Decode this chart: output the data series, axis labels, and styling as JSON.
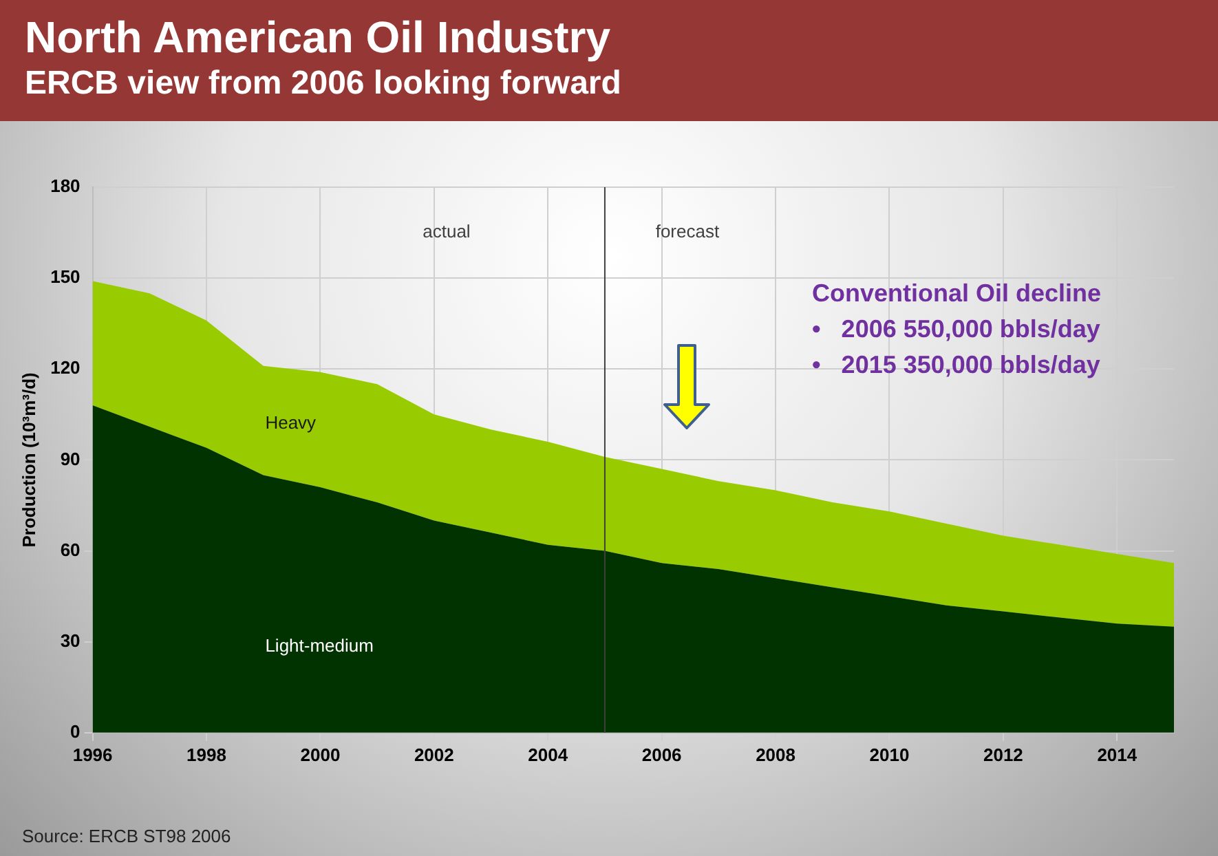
{
  "chart_data": {
    "type": "area",
    "stacked": true,
    "title": "North American Oil Industry",
    "subtitle": "ERCB view from 2006 looking forward",
    "ylabel": "Production (10³m³/d)",
    "x": [
      1996,
      1997,
      1998,
      1999,
      2000,
      2001,
      2002,
      2003,
      2004,
      2005,
      2006,
      2007,
      2008,
      2009,
      2010,
      2011,
      2012,
      2013,
      2014,
      2015
    ],
    "series": [
      {
        "name": "Light-medium",
        "color": "#003300",
        "values": [
          108,
          101,
          94,
          85,
          81,
          76,
          70,
          66,
          62,
          60,
          56,
          54,
          51,
          48,
          45,
          42,
          40,
          38,
          36,
          35
        ]
      },
      {
        "name": "Heavy",
        "color": "#99cc00",
        "values": [
          41,
          44,
          42,
          36,
          38,
          39,
          35,
          34,
          34,
          31,
          31,
          29,
          29,
          28,
          28,
          27,
          25,
          24,
          23,
          21
        ]
      }
    ],
    "xlim": [
      1996,
      2015
    ],
    "xticks": [
      1996,
      1998,
      2000,
      2002,
      2004,
      2006,
      2008,
      2010,
      2012,
      2014
    ],
    "ylim": [
      0,
      180
    ],
    "yticks": [
      0,
      30,
      60,
      90,
      120,
      150,
      180
    ],
    "grid": true,
    "legend": false,
    "ref_lines": [
      {
        "axis": "x",
        "value": 2005,
        "color": "#404040"
      }
    ],
    "annotations": [
      "actual",
      "forecast",
      "Conventional Oil decline",
      "•   2006 550,000 bbls/day",
      "•   2015 350,000 bbls/day",
      "Source: ERCB ST98 2006"
    ]
  }
}
